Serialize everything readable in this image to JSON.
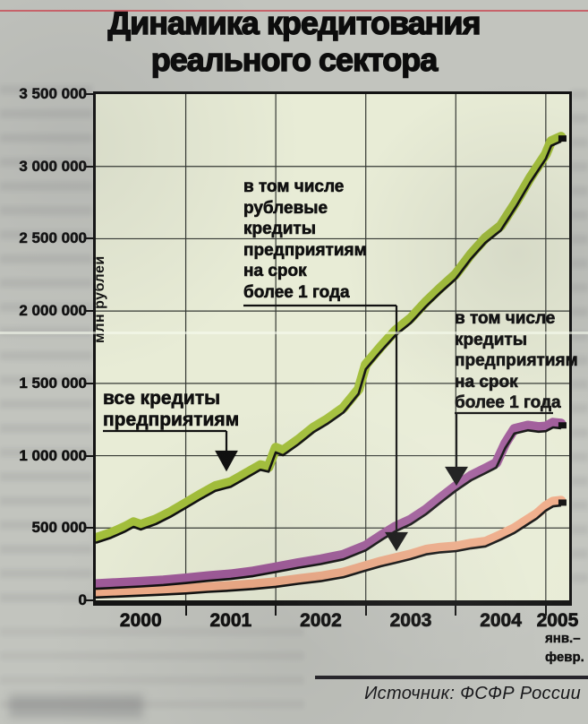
{
  "title": {
    "line1": "Динамика кредитования",
    "line2": "реального сектора"
  },
  "source": "Источник: ФСФР России",
  "axis": {
    "ylabel": "млн рублей",
    "sub_line1": "янв.–",
    "sub_line2": "февр."
  },
  "annotations": {
    "all_credits": {
      "lines": [
        "все кредиты",
        "предприятиям"
      ]
    },
    "ruble_long": {
      "lines": [
        "в том числе",
        "рублевые",
        "кредиты",
        "предприятиям",
        "на срок",
        "более 1 года"
      ]
    },
    "long_term": {
      "lines": [
        "в том числе",
        "кредиты",
        "предприятиям",
        "на срок",
        "более 1 года"
      ]
    }
  },
  "colors": {
    "page_bg": "#c2c4be",
    "plot_bg": "#e8ecd6",
    "green_series": "#a3bf3b",
    "purple_series": "#9f5a99",
    "pink_series": "#efab87",
    "frame": "#131313",
    "top_rule": "#c8525c"
  },
  "chart_data": {
    "type": "line",
    "title": "Динамика кредитования реального сектора",
    "xlabel": "",
    "ylabel": "млн рублей",
    "ylim": [
      0,
      3500000
    ],
    "ytick_step": 500000,
    "ytick_labels": [
      "3 500 000",
      "3 000 000",
      "2 500 000",
      "2 000 000",
      "1 500 000",
      "1 000 000",
      "500 000",
      "0"
    ],
    "xlim": [
      2000,
      2005.26
    ],
    "x_tick_labels": [
      "2000",
      "2001",
      "2002",
      "2003",
      "2004",
      "2005"
    ],
    "x_period_note_2005": "янв.–февр.",
    "grid": true,
    "legend_position": "inline-annotations",
    "series": [
      {
        "id": "pink",
        "name": "в том числе рублевые кредиты предприятиям на срок более 1 года",
        "color": "#efab87",
        "points": [
          [
            2000,
            52000
          ],
          [
            2000.25,
            58000
          ],
          [
            2000.5,
            65000
          ],
          [
            2000.75,
            72000
          ],
          [
            2001,
            80000
          ],
          [
            2001.25,
            91000
          ],
          [
            2001.5,
            100000
          ],
          [
            2001.75,
            111000
          ],
          [
            2002,
            126000
          ],
          [
            2002.25,
            147000
          ],
          [
            2002.5,
            165000
          ],
          [
            2002.75,
            192000
          ],
          [
            2003,
            238000
          ],
          [
            2003.17,
            268000
          ],
          [
            2003.33,
            292000
          ],
          [
            2003.5,
            318000
          ],
          [
            2003.67,
            350000
          ],
          [
            2003.83,
            364000
          ],
          [
            2004,
            372000
          ],
          [
            2004.17,
            392000
          ],
          [
            2004.33,
            405000
          ],
          [
            2004.5,
            452000
          ],
          [
            2004.65,
            498000
          ],
          [
            2004.8,
            558000
          ],
          [
            2004.9,
            598000
          ],
          [
            2005,
            652000
          ],
          [
            2005.08,
            682000
          ],
          [
            2005.17,
            688000
          ]
        ]
      },
      {
        "id": "purple",
        "name": "в том числе кредиты предприятиям на срок более 1 года",
        "color": "#9f5a99",
        "points": [
          [
            2000,
            112000
          ],
          [
            2000.25,
            120000
          ],
          [
            2000.5,
            128000
          ],
          [
            2000.75,
            138000
          ],
          [
            2001,
            152000
          ],
          [
            2001.25,
            167000
          ],
          [
            2001.5,
            180000
          ],
          [
            2001.75,
            200000
          ],
          [
            2002,
            228000
          ],
          [
            2002.25,
            258000
          ],
          [
            2002.5,
            283000
          ],
          [
            2002.75,
            315000
          ],
          [
            2003,
            378000
          ],
          [
            2003.17,
            448000
          ],
          [
            2003.33,
            510000
          ],
          [
            2003.5,
            558000
          ],
          [
            2003.67,
            628000
          ],
          [
            2003.83,
            708000
          ],
          [
            2004,
            790000
          ],
          [
            2004.17,
            862000
          ],
          [
            2004.33,
            912000
          ],
          [
            2004.45,
            950000
          ],
          [
            2004.55,
            1085000
          ],
          [
            2004.65,
            1185000
          ],
          [
            2004.8,
            1208000
          ],
          [
            2004.92,
            1198000
          ],
          [
            2005,
            1202000
          ],
          [
            2005.08,
            1228000
          ],
          [
            2005.17,
            1222000
          ]
        ]
      },
      {
        "id": "green",
        "name": "все кредиты предприятиям",
        "color": "#a3bf3b",
        "points": [
          [
            2000,
            430000
          ],
          [
            2000.17,
            465000
          ],
          [
            2000.33,
            510000
          ],
          [
            2000.42,
            540000
          ],
          [
            2000.5,
            522000
          ],
          [
            2000.67,
            560000
          ],
          [
            2000.83,
            610000
          ],
          [
            2001,
            672000
          ],
          [
            2001.17,
            735000
          ],
          [
            2001.33,
            790000
          ],
          [
            2001.5,
            818000
          ],
          [
            2001.67,
            878000
          ],
          [
            2001.83,
            935000
          ],
          [
            2001.92,
            922000
          ],
          [
            2002,
            1055000
          ],
          [
            2002.08,
            1035000
          ],
          [
            2002.25,
            1110000
          ],
          [
            2002.42,
            1195000
          ],
          [
            2002.58,
            1255000
          ],
          [
            2002.75,
            1330000
          ],
          [
            2002.92,
            1460000
          ],
          [
            2003,
            1630000
          ],
          [
            2003.17,
            1755000
          ],
          [
            2003.33,
            1865000
          ],
          [
            2003.5,
            1950000
          ],
          [
            2003.67,
            2065000
          ],
          [
            2003.83,
            2160000
          ],
          [
            2004,
            2255000
          ],
          [
            2004.17,
            2395000
          ],
          [
            2004.33,
            2505000
          ],
          [
            2004.5,
            2590000
          ],
          [
            2004.67,
            2755000
          ],
          [
            2004.83,
            2925000
          ],
          [
            2005,
            3085000
          ],
          [
            2005.06,
            3175000
          ],
          [
            2005.17,
            3205000
          ]
        ]
      }
    ]
  }
}
